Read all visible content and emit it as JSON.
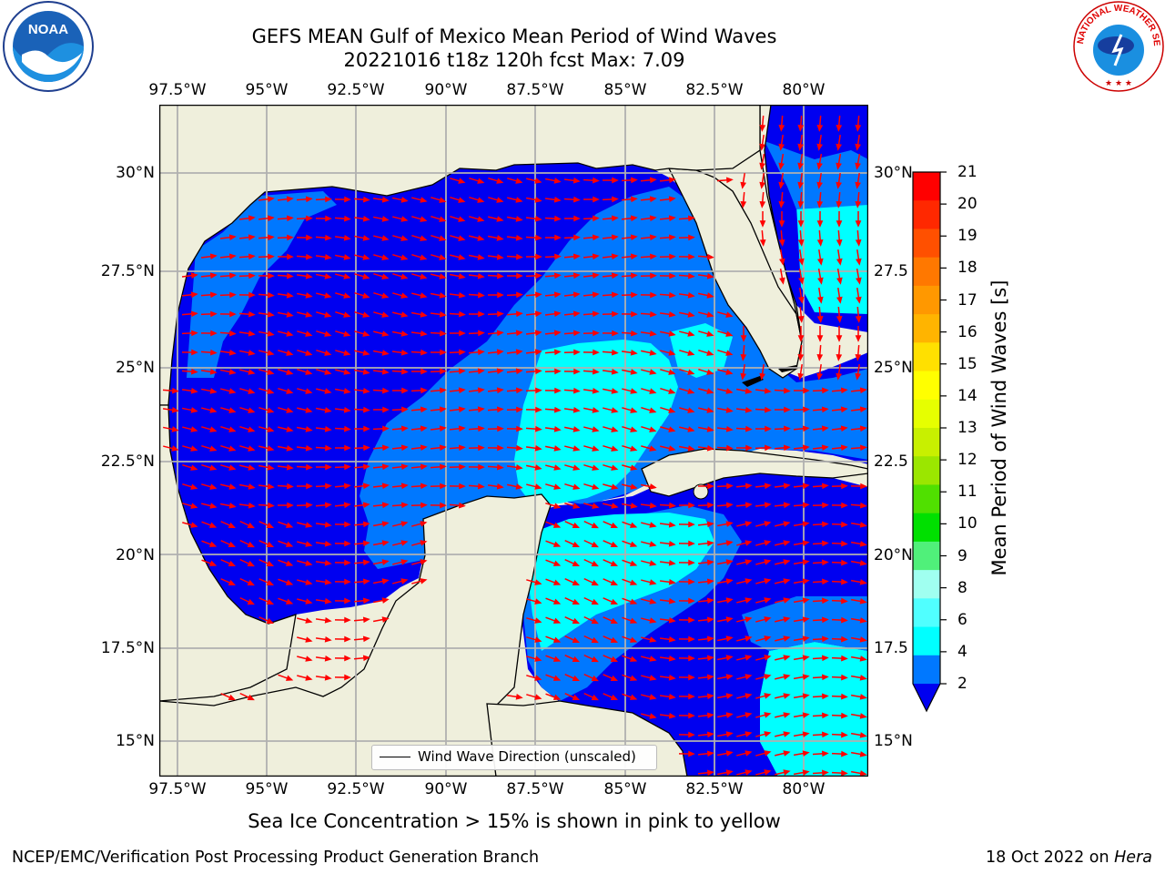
{
  "title": {
    "line1": "GEFS MEAN Gulf of Mexico Mean Period of Wind Waves",
    "line2": "20221016 t18z 120h fcst   Max: 7.09"
  },
  "axes": {
    "lon_ticks": [
      "97.5°W",
      "95°W",
      "92.5°W",
      "90°W",
      "87.5°W",
      "85°W",
      "82.5°W",
      "80°W"
    ],
    "lat_ticks_left": [
      "30°N",
      "27.5°N",
      "25°N",
      "22.5°N",
      "20°N",
      "17.5°N",
      "15°N"
    ],
    "lat_ticks_right": [
      "30°N",
      "27.5",
      "25°N",
      "22.5",
      "20°N",
      "17.5",
      "15°N"
    ]
  },
  "colorbar": {
    "label": "Mean Period of Wind Waves [s]",
    "ticks": [
      "21",
      "20",
      "19",
      "18",
      "17",
      "16",
      "15",
      "14",
      "13",
      "12",
      "11",
      "10",
      "9",
      "8",
      "6",
      "4",
      "2"
    ],
    "colors": [
      "#ff0000",
      "#ff2800",
      "#ff5000",
      "#ff7800",
      "#ff9800",
      "#ffb400",
      "#ffe000",
      "#ffff00",
      "#e6ff00",
      "#c8f000",
      "#9be600",
      "#50e000",
      "#00e000",
      "#50f07a",
      "#a0fff0",
      "#50ffff",
      "#00ffff",
      "#0078ff",
      "#0000f0"
    ]
  },
  "legend": {
    "label": "Wind Wave Direction (unscaled)"
  },
  "note": "Sea Ice Concentration > 15% is shown in pink to yellow",
  "footer": {
    "left": "NCEP/EMC/Verification Post Processing Product Generation Branch",
    "right_prefix": "18 Oct 2022 on ",
    "right_host": "Hera"
  },
  "logos": {
    "left_text": "NOAA",
    "right_text": "NATIONAL WEATHER SERVICE"
  },
  "map_colors": {
    "land": "#efefdc",
    "deep_blue": "#0000f0",
    "mid_blue": "#0078ff",
    "cyan": "#00ffff",
    "light_cyan": "#50ffff",
    "arrow": "#ff0000"
  }
}
